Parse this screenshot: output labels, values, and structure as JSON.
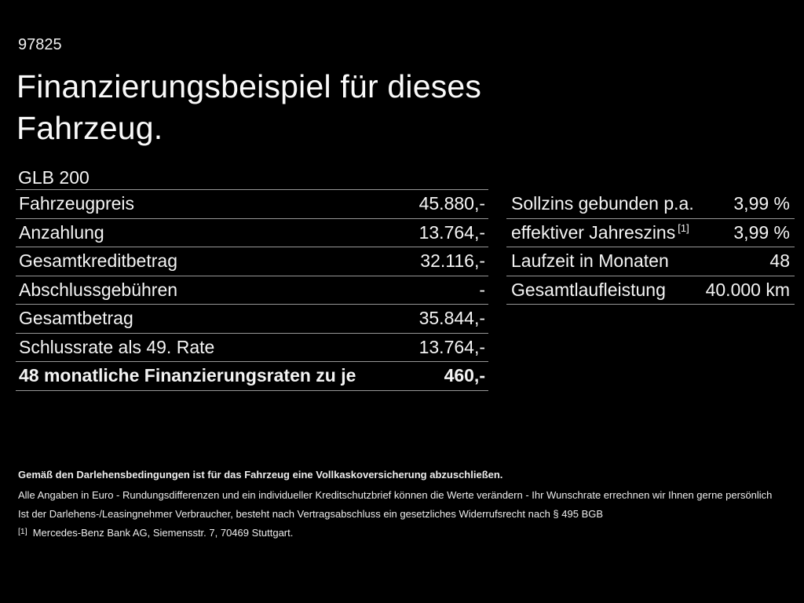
{
  "page": {
    "background_color": "#000000",
    "text_color": "#f4f4f4",
    "divider_color": "#979797"
  },
  "header": {
    "doc_number": "97825",
    "title_lines": [
      "Finanzierungsbeispiel für dieses",
      "Fahrzeug."
    ],
    "model": "GLB 200"
  },
  "finance_table": {
    "rows": [
      {
        "label": "Fahrzeugpreis",
        "value": "45.880,-"
      },
      {
        "label": "Anzahlung",
        "value": "13.764,-"
      },
      {
        "label": "Gesamtkreditbetrag",
        "value": "32.116,-"
      },
      {
        "label": "Abschlussgebühren",
        "value": "-"
      },
      {
        "label": "Gesamtbetrag",
        "value": "35.844,-"
      },
      {
        "label": "Schlussrate als 49. Rate",
        "value": "13.764,-"
      },
      {
        "label": "48 monatliche Finanzierungsraten zu je",
        "value": "460,-"
      }
    ]
  },
  "conditions_table": {
    "rows": [
      {
        "label": "Sollzins gebunden p.a.",
        "sup": "",
        "value": "3,99 %"
      },
      {
        "label": "effektiver Jahreszins",
        "sup": "[1]",
        "value": "3,99 %"
      },
      {
        "label": "Laufzeit in Monaten",
        "sup": "",
        "value": "48"
      },
      {
        "label": "Gesamtlaufleistung",
        "sup": "",
        "value": "40.000 km"
      }
    ]
  },
  "footer": {
    "insurance_note": "Gemäß den Darlehensbedingungen ist für das Fahrzeug eine Vollkaskoversicherung abzuschließen.",
    "disclaimer_1": "Alle Angaben in Euro - Rundungsdifferenzen und ein individueller Kreditschutzbrief können die Werte verändern - Ihr Wunschrate errechnen wir Ihnen gerne persönlich",
    "disclaimer_2": "Ist der Darlehens-/Leasingnehmer Verbraucher, besteht nach Vertragsabschluss ein gesetzliches Widerrufsrecht nach § 495 BGB",
    "footnote_marker": "[1]",
    "footnote_text": "Mercedes-Benz Bank AG, Siemensstr. 7, 70469 Stuttgart."
  }
}
